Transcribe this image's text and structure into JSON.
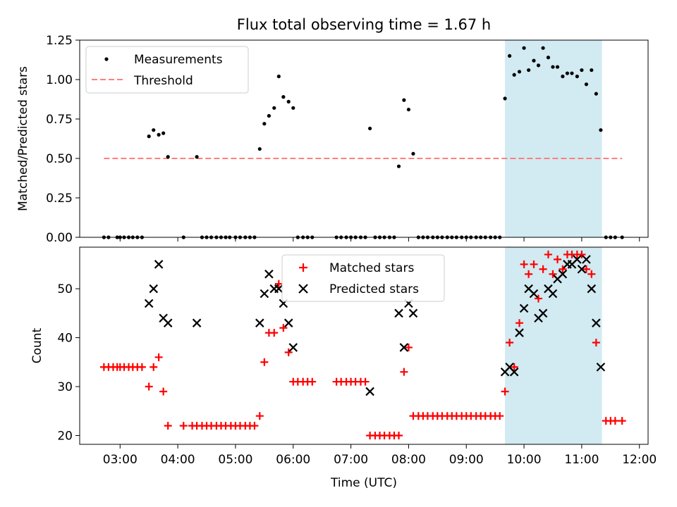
{
  "figure": {
    "title": "Flux total observing time = 1.67 h",
    "xlabel": "Time (UTC)",
    "x_ticks": [
      "03:00",
      "04:00",
      "05:00",
      "06:00",
      "07:00",
      "08:00",
      "09:00",
      "10:00",
      "11:00",
      "12:00"
    ],
    "x_tick_hours": [
      3,
      4,
      5,
      6,
      7,
      8,
      9,
      10,
      11,
      12
    ],
    "xlim_hours": [
      2.3,
      12.15
    ],
    "highlight_span_hours": [
      9.67,
      11.35
    ],
    "colors": {
      "highlight": "#add8e6",
      "measurement": "#000000",
      "threshold": "#ff7f7f",
      "matched": "#ff0000",
      "predicted": "#000000"
    }
  },
  "chart_data": [
    {
      "type": "scatter",
      "ylabel": "Matched/Predicted stars",
      "ylim": [
        0,
        1.25
      ],
      "y_ticks": [
        "0.00",
        "0.25",
        "0.50",
        "0.75",
        "1.00",
        "1.25"
      ],
      "y_tick_values": [
        0,
        0.25,
        0.5,
        0.75,
        1.0,
        1.25
      ],
      "legend": {
        "placement": "top-left",
        "entries": [
          "Measurements",
          "Threshold"
        ]
      },
      "threshold": {
        "value": 0.5,
        "x_range_hours": [
          2.72,
          11.7
        ]
      },
      "measurements": [
        [
          2.72,
          0
        ],
        [
          2.8,
          0
        ],
        [
          2.95,
          0
        ],
        [
          3.0,
          0
        ],
        [
          3.07,
          0
        ],
        [
          3.15,
          0
        ],
        [
          3.22,
          0
        ],
        [
          3.3,
          0
        ],
        [
          3.38,
          0
        ],
        [
          3.5,
          0.64
        ],
        [
          3.58,
          0.68
        ],
        [
          3.67,
          0.65
        ],
        [
          3.75,
          0.66
        ],
        [
          3.83,
          0.51
        ],
        [
          4.1,
          0
        ],
        [
          4.33,
          0.51
        ],
        [
          4.42,
          0
        ],
        [
          4.5,
          0
        ],
        [
          4.58,
          0
        ],
        [
          4.67,
          0
        ],
        [
          4.75,
          0
        ],
        [
          4.83,
          0
        ],
        [
          4.9,
          0
        ],
        [
          5.0,
          0
        ],
        [
          5.08,
          0
        ],
        [
          5.17,
          0
        ],
        [
          5.25,
          0
        ],
        [
          5.33,
          0
        ],
        [
          5.42,
          0.56
        ],
        [
          5.5,
          0.72
        ],
        [
          5.58,
          0.77
        ],
        [
          5.67,
          0.82
        ],
        [
          5.75,
          1.02
        ],
        [
          5.83,
          0.89
        ],
        [
          5.92,
          0.86
        ],
        [
          6.0,
          0.82
        ],
        [
          6.08,
          0
        ],
        [
          6.17,
          0
        ],
        [
          6.25,
          0
        ],
        [
          6.33,
          0
        ],
        [
          6.75,
          0
        ],
        [
          6.83,
          0
        ],
        [
          6.92,
          0
        ],
        [
          7.0,
          0
        ],
        [
          7.08,
          0
        ],
        [
          7.17,
          0
        ],
        [
          7.25,
          0
        ],
        [
          7.33,
          0.69
        ],
        [
          7.42,
          0
        ],
        [
          7.5,
          0
        ],
        [
          7.58,
          0
        ],
        [
          7.67,
          0
        ],
        [
          7.75,
          0
        ],
        [
          7.83,
          0.45
        ],
        [
          7.92,
          0.87
        ],
        [
          8.0,
          0.81
        ],
        [
          8.08,
          0.53
        ],
        [
          8.17,
          0
        ],
        [
          8.25,
          0
        ],
        [
          8.33,
          0
        ],
        [
          8.42,
          0
        ],
        [
          8.5,
          0
        ],
        [
          8.58,
          0
        ],
        [
          8.67,
          0
        ],
        [
          8.75,
          0
        ],
        [
          8.83,
          0
        ],
        [
          8.92,
          0
        ],
        [
          9.0,
          0
        ],
        [
          9.08,
          0
        ],
        [
          9.17,
          0
        ],
        [
          9.25,
          0
        ],
        [
          9.33,
          0
        ],
        [
          9.42,
          0
        ],
        [
          9.5,
          0
        ],
        [
          9.58,
          0
        ],
        [
          9.67,
          0.88
        ],
        [
          9.75,
          1.15
        ],
        [
          9.83,
          1.03
        ],
        [
          9.92,
          1.05
        ],
        [
          10.0,
          1.2
        ],
        [
          10.08,
          1.06
        ],
        [
          10.17,
          1.12
        ],
        [
          10.25,
          1.09
        ],
        [
          10.33,
          1.2
        ],
        [
          10.42,
          1.14
        ],
        [
          10.5,
          1.08
        ],
        [
          10.58,
          1.08
        ],
        [
          10.67,
          1.02
        ],
        [
          10.75,
          1.04
        ],
        [
          10.83,
          1.04
        ],
        [
          10.92,
          1.02
        ],
        [
          11.0,
          1.06
        ],
        [
          11.08,
          0.97
        ],
        [
          11.17,
          1.06
        ],
        [
          11.25,
          0.91
        ],
        [
          11.33,
          0.68
        ],
        [
          11.42,
          0
        ],
        [
          11.5,
          0
        ],
        [
          11.58,
          0
        ],
        [
          11.7,
          0
        ]
      ]
    },
    {
      "type": "scatter",
      "ylabel": "Count",
      "ylim": [
        18.2,
        58.5
      ],
      "y_ticks": [
        "20",
        "30",
        "40",
        "50"
      ],
      "y_tick_values": [
        20,
        30,
        40,
        50
      ],
      "legend": {
        "placement": "top-center",
        "entries": [
          "Matched stars",
          "Predicted stars"
        ]
      },
      "matched": [
        [
          2.72,
          34
        ],
        [
          2.8,
          34
        ],
        [
          2.88,
          34
        ],
        [
          2.95,
          34
        ],
        [
          3.0,
          34
        ],
        [
          3.07,
          34
        ],
        [
          3.15,
          34
        ],
        [
          3.22,
          34
        ],
        [
          3.3,
          34
        ],
        [
          3.38,
          34
        ],
        [
          3.5,
          30
        ],
        [
          3.58,
          34
        ],
        [
          3.67,
          36
        ],
        [
          3.75,
          29
        ],
        [
          3.83,
          22
        ],
        [
          4.1,
          22
        ],
        [
          4.25,
          22
        ],
        [
          4.33,
          22
        ],
        [
          4.42,
          22
        ],
        [
          4.5,
          22
        ],
        [
          4.58,
          22
        ],
        [
          4.67,
          22
        ],
        [
          4.75,
          22
        ],
        [
          4.83,
          22
        ],
        [
          4.92,
          22
        ],
        [
          5.0,
          22
        ],
        [
          5.08,
          22
        ],
        [
          5.17,
          22
        ],
        [
          5.25,
          22
        ],
        [
          5.33,
          22
        ],
        [
          5.42,
          24
        ],
        [
          5.5,
          35
        ],
        [
          5.58,
          41
        ],
        [
          5.67,
          41
        ],
        [
          5.75,
          51
        ],
        [
          5.83,
          42
        ],
        [
          5.92,
          37
        ],
        [
          6.0,
          31
        ],
        [
          6.08,
          31
        ],
        [
          6.17,
          31
        ],
        [
          6.25,
          31
        ],
        [
          6.33,
          31
        ],
        [
          6.75,
          31
        ],
        [
          6.83,
          31
        ],
        [
          6.92,
          31
        ],
        [
          7.0,
          31
        ],
        [
          7.08,
          31
        ],
        [
          7.17,
          31
        ],
        [
          7.25,
          31
        ],
        [
          7.33,
          20
        ],
        [
          7.42,
          20
        ],
        [
          7.5,
          20
        ],
        [
          7.58,
          20
        ],
        [
          7.67,
          20
        ],
        [
          7.75,
          20
        ],
        [
          7.83,
          20
        ],
        [
          7.92,
          33
        ],
        [
          8.0,
          38
        ],
        [
          8.08,
          24
        ],
        [
          8.17,
          24
        ],
        [
          8.25,
          24
        ],
        [
          8.33,
          24
        ],
        [
          8.42,
          24
        ],
        [
          8.5,
          24
        ],
        [
          8.58,
          24
        ],
        [
          8.67,
          24
        ],
        [
          8.75,
          24
        ],
        [
          8.83,
          24
        ],
        [
          8.92,
          24
        ],
        [
          9.0,
          24
        ],
        [
          9.08,
          24
        ],
        [
          9.17,
          24
        ],
        [
          9.25,
          24
        ],
        [
          9.33,
          24
        ],
        [
          9.42,
          24
        ],
        [
          9.5,
          24
        ],
        [
          9.58,
          24
        ],
        [
          9.67,
          29
        ],
        [
          9.75,
          39
        ],
        [
          9.83,
          34
        ],
        [
          9.92,
          43
        ],
        [
          10.0,
          55
        ],
        [
          10.08,
          53
        ],
        [
          10.17,
          55
        ],
        [
          10.25,
          48
        ],
        [
          10.33,
          54
        ],
        [
          10.42,
          57
        ],
        [
          10.5,
          53
        ],
        [
          10.58,
          56
        ],
        [
          10.67,
          54
        ],
        [
          10.75,
          57
        ],
        [
          10.83,
          57
        ],
        [
          10.92,
          57
        ],
        [
          11.0,
          57
        ],
        [
          11.08,
          54
        ],
        [
          11.17,
          53
        ],
        [
          11.25,
          39
        ],
        [
          11.42,
          23
        ],
        [
          11.5,
          23
        ],
        [
          11.58,
          23
        ],
        [
          11.7,
          23
        ]
      ],
      "predicted": [
        [
          3.5,
          47
        ],
        [
          3.58,
          50
        ],
        [
          3.67,
          55
        ],
        [
          3.75,
          44
        ],
        [
          3.83,
          43
        ],
        [
          4.33,
          43
        ],
        [
          5.42,
          43
        ],
        [
          5.5,
          49
        ],
        [
          5.58,
          53
        ],
        [
          5.67,
          50
        ],
        [
          5.75,
          50
        ],
        [
          5.83,
          47
        ],
        [
          5.92,
          43
        ],
        [
          6.0,
          38
        ],
        [
          7.33,
          29
        ],
        [
          7.83,
          45
        ],
        [
          7.92,
          38
        ],
        [
          8.0,
          47
        ],
        [
          8.08,
          45
        ],
        [
          9.67,
          33
        ],
        [
          9.75,
          34
        ],
        [
          9.83,
          33
        ],
        [
          9.92,
          41
        ],
        [
          10.0,
          46
        ],
        [
          10.08,
          50
        ],
        [
          10.17,
          49
        ],
        [
          10.25,
          44
        ],
        [
          10.33,
          45
        ],
        [
          10.42,
          50
        ],
        [
          10.5,
          49
        ],
        [
          10.58,
          52
        ],
        [
          10.67,
          53
        ],
        [
          10.75,
          55
        ],
        [
          10.83,
          55
        ],
        [
          10.92,
          56
        ],
        [
          11.0,
          54
        ],
        [
          11.08,
          56
        ],
        [
          11.17,
          50
        ],
        [
          11.25,
          43
        ],
        [
          11.33,
          34
        ]
      ]
    }
  ]
}
